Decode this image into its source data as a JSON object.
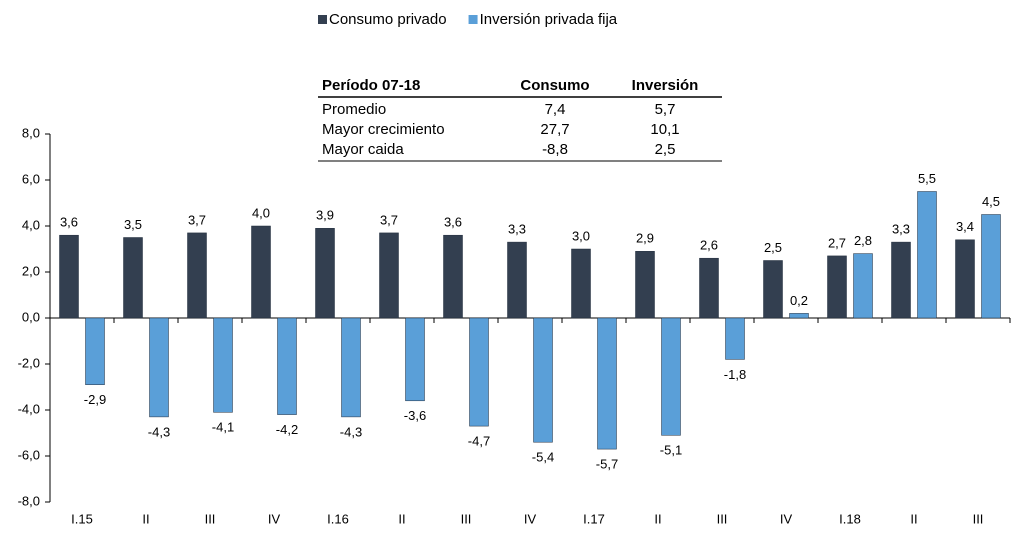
{
  "chart_data": {
    "type": "bar",
    "legend": "top",
    "grid": false,
    "categories": [
      "I.15",
      "II",
      "III",
      "IV",
      "I.16",
      "II",
      "III",
      "IV",
      "I.17",
      "II",
      "III",
      "IV",
      "I.18",
      "II",
      "III"
    ],
    "series": [
      {
        "name": "Consumo privado",
        "color": "#333f50",
        "values": [
          3.6,
          3.5,
          3.7,
          4.0,
          3.9,
          3.7,
          3.6,
          3.3,
          3.0,
          2.9,
          2.6,
          2.5,
          2.7,
          3.3,
          3.4
        ],
        "value_labels": [
          "3,6",
          "3,5",
          "3,7",
          "4,0",
          "3,9",
          "3,7",
          "3,6",
          "3,3",
          "3,0",
          "2,9",
          "2,6",
          "2,5",
          "2,7",
          "3,3",
          "3,4"
        ]
      },
      {
        "name": "Inversión privada fija",
        "color": "#5a9fd8",
        "values": [
          -2.9,
          -4.3,
          -4.1,
          -4.2,
          -4.3,
          -3.6,
          -4.7,
          -5.4,
          -5.7,
          -5.1,
          -1.8,
          0.2,
          2.8,
          5.5,
          4.5
        ],
        "value_labels": [
          "-2,9",
          "-4,3",
          "-4,1",
          "-4,2",
          "-4,3",
          "-3,6",
          "-4,7",
          "-5,4",
          "-5,7",
          "-5,1",
          "-1,8",
          "0,2",
          "2,8",
          "5,5",
          "4,5"
        ]
      }
    ],
    "ylim": [
      -8,
      8
    ],
    "yticks": [
      {
        "value": -8,
        "label": "-8,0"
      },
      {
        "value": -6,
        "label": "-6,0"
      },
      {
        "value": -4,
        "label": "-4,0"
      },
      {
        "value": -2,
        "label": "-2,0"
      },
      {
        "value": 0,
        "label": "0,0"
      },
      {
        "value": 2,
        "label": "2,0"
      },
      {
        "value": 4,
        "label": "4,0"
      },
      {
        "value": 6,
        "label": "6,0"
      },
      {
        "value": 8,
        "label": "8,0"
      }
    ],
    "table": {
      "header": [
        "Período 07-18",
        "Consumo",
        "Inversión"
      ],
      "rows": [
        [
          "Promedio",
          "7,4",
          "5,7"
        ],
        [
          "Mayor crecimiento",
          "27,7",
          "10,1"
        ],
        [
          "Mayor caida",
          "-8,8",
          "2,5"
        ]
      ]
    }
  }
}
